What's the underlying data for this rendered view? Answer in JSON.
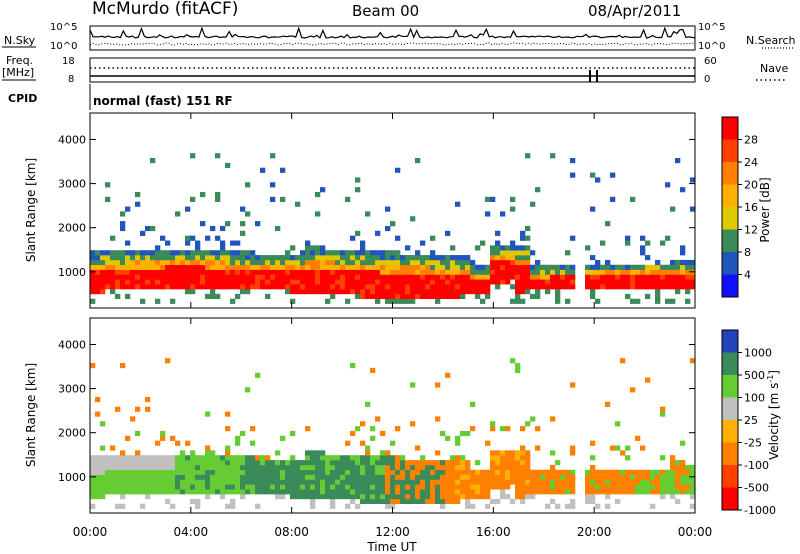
{
  "header": {
    "station": "McMurdo (fitACF)",
    "beam": "Beam 00",
    "date": "08/Apr/2011"
  },
  "left_labels": {
    "nsky": "N.Sky",
    "freq": "Freq.",
    "mhz": "[MHz]",
    "cpid": "CPID"
  },
  "right_labels": {
    "nsearch": "N.Search",
    "nave": "Nave"
  },
  "small_axes": {
    "nsky_ticks_left": [
      "10^5",
      "10^0"
    ],
    "nsky_ticks_right": [
      "10^5",
      "10^0"
    ],
    "freq_ticks": [
      "18",
      "8"
    ],
    "nave_ticks": [
      "60",
      "0"
    ]
  },
  "cpid_text": "normal (fast) 151 RF",
  "colors": {
    "red": "#ff0000",
    "orange_red": "#ff4000",
    "orange": "#ff8000",
    "amber": "#ffb000",
    "yellow": "#e0c800",
    "green_light": "#66cc33",
    "green_dark": "#3a8a5a",
    "grey": "#c0c0c0",
    "blue": "#2255bb",
    "blue_bright": "#1010ff"
  },
  "chart_data": [
    {
      "type": "heatmap",
      "title": "",
      "ylabel": "Slant Range [km]",
      "xlabel": "",
      "ylim": [
        180,
        4600
      ],
      "yticks": [
        "1000",
        "2000",
        "3000",
        "4000"
      ],
      "x": [
        "00:00",
        "04:00",
        "08:00",
        "12:00",
        "16:00",
        "20:00",
        "00:00"
      ],
      "colorbar": {
        "label": "Power [dB]",
        "ticks": [
          "28",
          "24",
          "20",
          "16",
          "12",
          "8",
          "4"
        ],
        "colors": [
          "#ff0000",
          "#ff4000",
          "#ff8000",
          "#ffb000",
          "#e0c800",
          "#3a8a5a",
          "#2255bb",
          "#1010ff"
        ]
      }
    },
    {
      "type": "heatmap",
      "title": "",
      "ylabel": "Slant Range [km]",
      "xlabel": "Time UT",
      "ylim": [
        180,
        4600
      ],
      "yticks": [
        "1000",
        "2000",
        "3000",
        "4000"
      ],
      "x": [
        "00:00",
        "04:00",
        "08:00",
        "12:00",
        "16:00",
        "20:00",
        "00:00"
      ],
      "colorbar": {
        "label": "Velocity [m s",
        "label_sup": "-1",
        "label_end": "]",
        "ticks": [
          "1000",
          "500",
          "100",
          "25",
          "-25",
          "-100",
          "-500",
          "-1000"
        ],
        "colors": [
          "#2244bb",
          "#3a8a5a",
          "#66cc33",
          "#c0c0c0",
          "#ffb000",
          "#ff8000",
          "#ff4000",
          "#ff0000"
        ]
      }
    }
  ]
}
